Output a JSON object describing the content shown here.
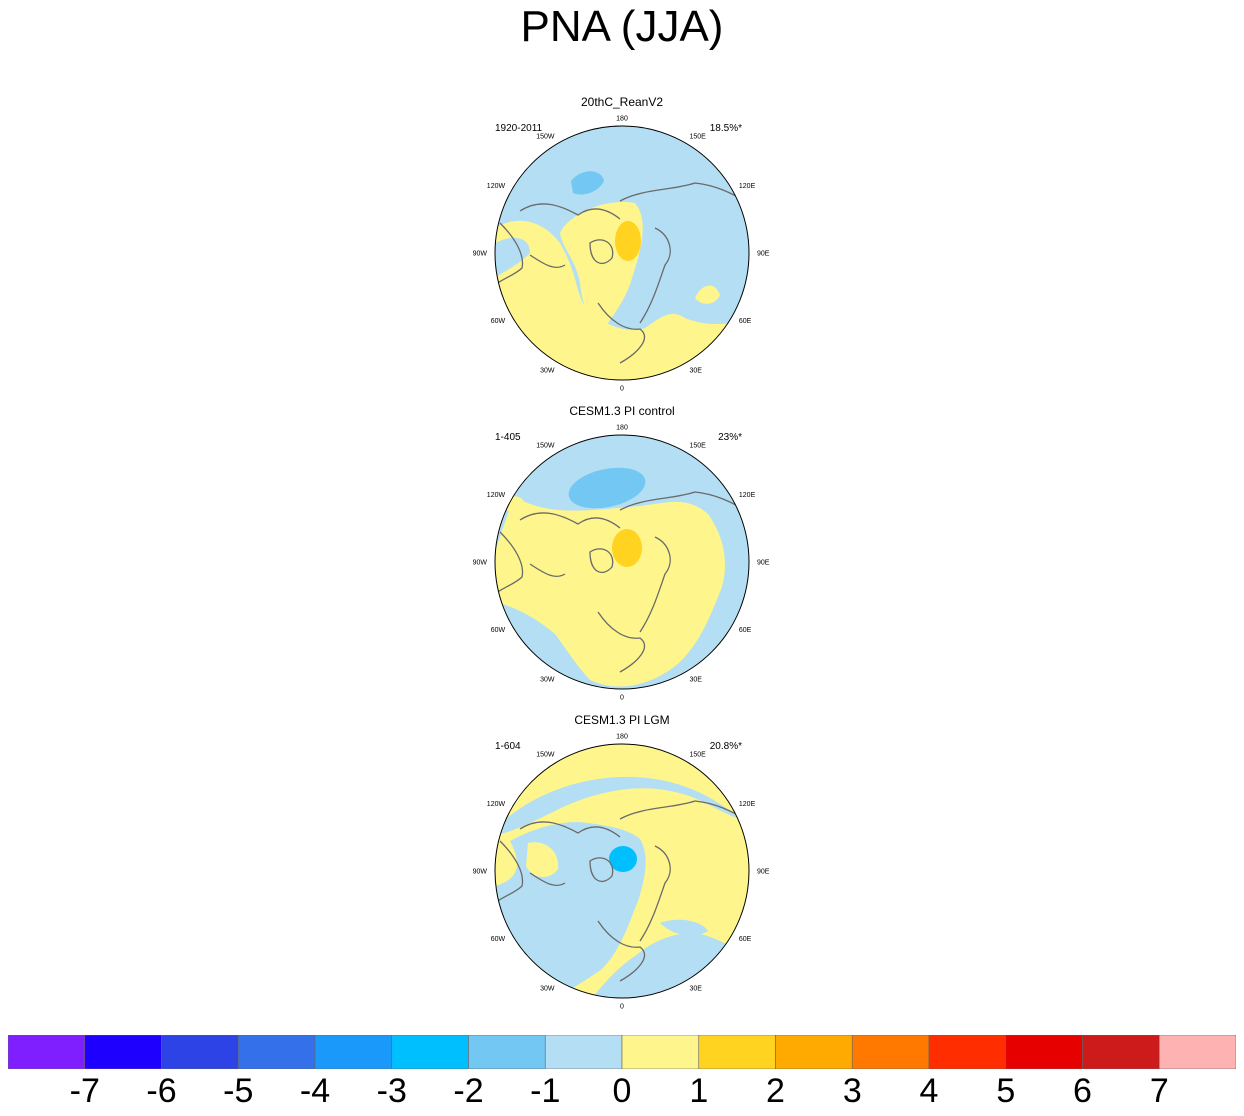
{
  "title": "PNA (JJA)",
  "colors": [
    "#7f1fff",
    "#1e00ff",
    "#2e43e6",
    "#3470e9",
    "#1b99fb",
    "#00bfff",
    "#72c8f3",
    "#b3def3",
    "#fef68c",
    "#ffd31f",
    "#ffaa00",
    "#ff7800",
    "#ff2d00",
    "#e60000",
    "#cd1a1a",
    "#feb2b2"
  ],
  "colorbar_labels": [
    "-7",
    "-6",
    "-5",
    "-4",
    "-3",
    "-2",
    "-1",
    "0",
    "1",
    "2",
    "3",
    "4",
    "5",
    "6",
    "7"
  ],
  "lon_labels": [
    "180",
    "150E",
    "120E",
    "90E",
    "60E",
    "30E",
    "0",
    "30W",
    "60W",
    "90W",
    "120W",
    "150W"
  ],
  "panels": [
    {
      "name": "20thC_ReanV2",
      "period": "1920-2011",
      "variance": "18.5%*"
    },
    {
      "name": "CESM1.3 PI control",
      "period": "1-405",
      "variance": "23%*"
    },
    {
      "name": "CESM1.3 PI LGM",
      "period": "1-604",
      "variance": "20.8%*"
    }
  ],
  "chart_data": {
    "type": "heatmap",
    "title": "PNA (JJA)",
    "projection": "north polar stereographic",
    "colorbar": {
      "levels": [
        -7,
        -6,
        -5,
        -4,
        -3,
        -2,
        -1,
        0,
        1,
        2,
        3,
        4,
        5,
        6,
        7
      ],
      "colors": [
        "#7f1fff",
        "#1e00ff",
        "#2e43e6",
        "#3470e9",
        "#1b99fb",
        "#00bfff",
        "#72c8f3",
        "#b3def3",
        "#fef68c",
        "#ffd31f",
        "#ffaa00",
        "#ff7800",
        "#ff2d00",
        "#e60000",
        "#cd1a1a",
        "#feb2b2"
      ]
    },
    "panels": [
      {
        "title": "20thC_ReanV2",
        "period": "1920-2011",
        "explained_variance": "18.5%*",
        "max_anomaly": "1 to 2 (pole)",
        "min_anomaly": "-2 to -1 (North Pacific)"
      },
      {
        "title": "CESM1.3 PI control",
        "period": "1-405",
        "explained_variance": "23%*",
        "max_anomaly": "1 to 2 (pole)",
        "min_anomaly": "-2 to -1 (North Pacific)"
      },
      {
        "title": "CESM1.3 PI LGM",
        "period": "1-604",
        "explained_variance": "20.8%*",
        "max_anomaly": "0 to 1",
        "min_anomaly": "-3 to -2 (pole)"
      }
    ]
  }
}
